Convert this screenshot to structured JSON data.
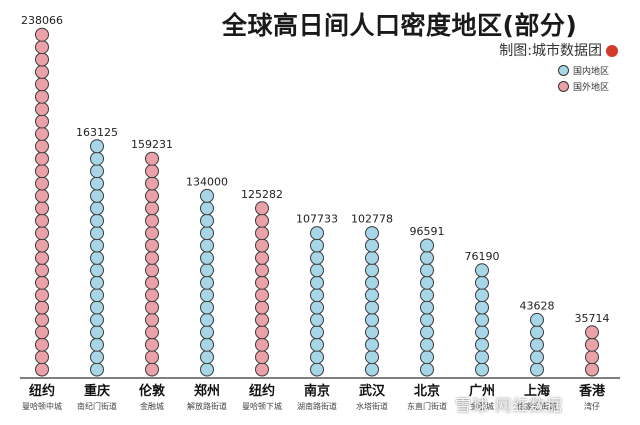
{
  "title": "全球高日间人口密度地区(部分)",
  "source": "制图:城市数据团",
  "legend": [
    {
      "label": "国内地区",
      "color": "#a6d6e8"
    },
    {
      "label": "国外地区",
      "color": "#eaa2a8"
    }
  ],
  "watermark": "雪球 网红数据",
  "chart_data": {
    "type": "bar",
    "style": "stacked-circles",
    "categories": [
      "纽约",
      "重庆",
      "伦敦",
      "郑州",
      "纽约",
      "南京",
      "武汉",
      "北京",
      "广州",
      "上海",
      "香港"
    ],
    "sublabels": [
      "曼哈顿中城",
      "南纪门街道",
      "金融城",
      "解放路街道",
      "曼哈顿下城",
      "湖南路街道",
      "水塔街道",
      "东直门街道",
      "金融城",
      "徐家汇街道",
      "湾仔"
    ],
    "region": [
      "foreign",
      "domestic",
      "foreign",
      "domestic",
      "foreign",
      "domestic",
      "domestic",
      "domestic",
      "domestic",
      "domestic",
      "foreign"
    ],
    "values": [
      238066,
      163125,
      159231,
      134000,
      125282,
      107733,
      102778,
      96591,
      76190,
      43628,
      35714
    ],
    "title": "全球高日间人口密度地区(部分)",
    "xlabel": "",
    "ylabel": "",
    "ylim": [
      0,
      240000
    ],
    "grid": false,
    "legend_position": "top-right"
  }
}
